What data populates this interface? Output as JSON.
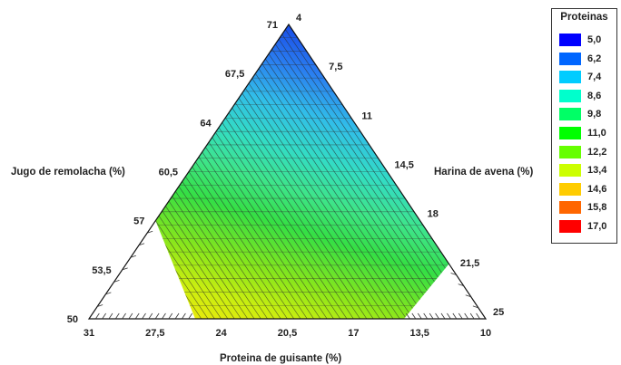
{
  "chart_data": {
    "type": "ternary-contour",
    "axes": {
      "left": {
        "title": "Jugo de remolacha (%)",
        "ticks": [
          "50",
          "53,5",
          "57",
          "60,5",
          "64",
          "67,5",
          "71"
        ]
      },
      "right": {
        "title": "Harina de avena (%)",
        "ticks": [
          "4",
          "7,5",
          "11",
          "14,5",
          "18",
          "21,5",
          "25"
        ]
      },
      "bottom": {
        "title": "Proteina de guisante (%)",
        "ticks": [
          "31",
          "27,5",
          "24",
          "20,5",
          "17",
          "13,5",
          "10"
        ]
      }
    },
    "feasible_region_note_values": {
      "beet_juice_min": 57,
      "oat_flour_max": 21,
      "pea_protein_range": [
        14,
        26
      ]
    },
    "legend": {
      "title": "Proteinas",
      "levels": [
        {
          "label": "5,0",
          "color": "#0000ff"
        },
        {
          "label": "6,2",
          "color": "#0066ff"
        },
        {
          "label": "7,4",
          "color": "#00ccff"
        },
        {
          "label": "8,6",
          "color": "#00ffcc"
        },
        {
          "label": "9,8",
          "color": "#00ff66"
        },
        {
          "label": "11,0",
          "color": "#00ff00"
        },
        {
          "label": "12,2",
          "color": "#66ff00"
        },
        {
          "label": "13,4",
          "color": "#ccff00"
        },
        {
          "label": "14,6",
          "color": "#ffcc00"
        },
        {
          "label": "15,8",
          "color": "#ff6600"
        },
        {
          "label": "17,0",
          "color": "#ff0000"
        }
      ]
    }
  }
}
